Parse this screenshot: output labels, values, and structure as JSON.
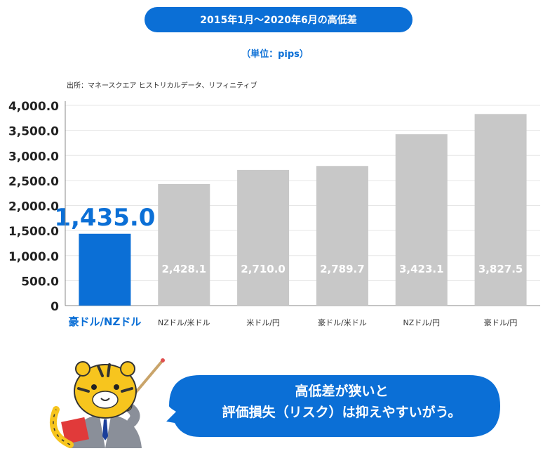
{
  "title": "2015年1月〜2020年6月の高低差",
  "unit": "（単位：pips）",
  "source": "出所：マネースクエア ヒストリカルデータ、リフィニティブ",
  "bubble": {
    "line1": "高低差が狭いと",
    "line2": "評価損失（リスク）は抑えやすいがう。"
  },
  "colors": {
    "accent": "#0b6fd6",
    "bar_gray": "#c8c8c8",
    "gridline": "#e6e6e6"
  },
  "chart_data": {
    "type": "bar",
    "categories": [
      "豪ドル/NZドル",
      "NZドル/米ドル",
      "米ドル/円",
      "豪ドル/米ドル",
      "NZドル/円",
      "豪ドル/円"
    ],
    "values": [
      1435.0,
      2428.1,
      2710.0,
      2789.7,
      3423.1,
      3827.5
    ],
    "value_labels": [
      "1,435.0",
      "2,428.1",
      "2,710.0",
      "2,789.7",
      "3,423.1",
      "3,827.5"
    ],
    "highlight_index": 0,
    "ylim": [
      0,
      4000
    ],
    "yticks": [
      0,
      500,
      1000,
      1500,
      2000,
      2500,
      3000,
      3500,
      4000
    ],
    "ytick_labels": [
      "0",
      "500.0",
      "1,000.0",
      "1,500.0",
      "2,000.0",
      "2,500.0",
      "3,000.0",
      "3,500.0",
      "4,000.0"
    ],
    "grid": true,
    "title": "",
    "xlabel": "",
    "ylabel": ""
  }
}
